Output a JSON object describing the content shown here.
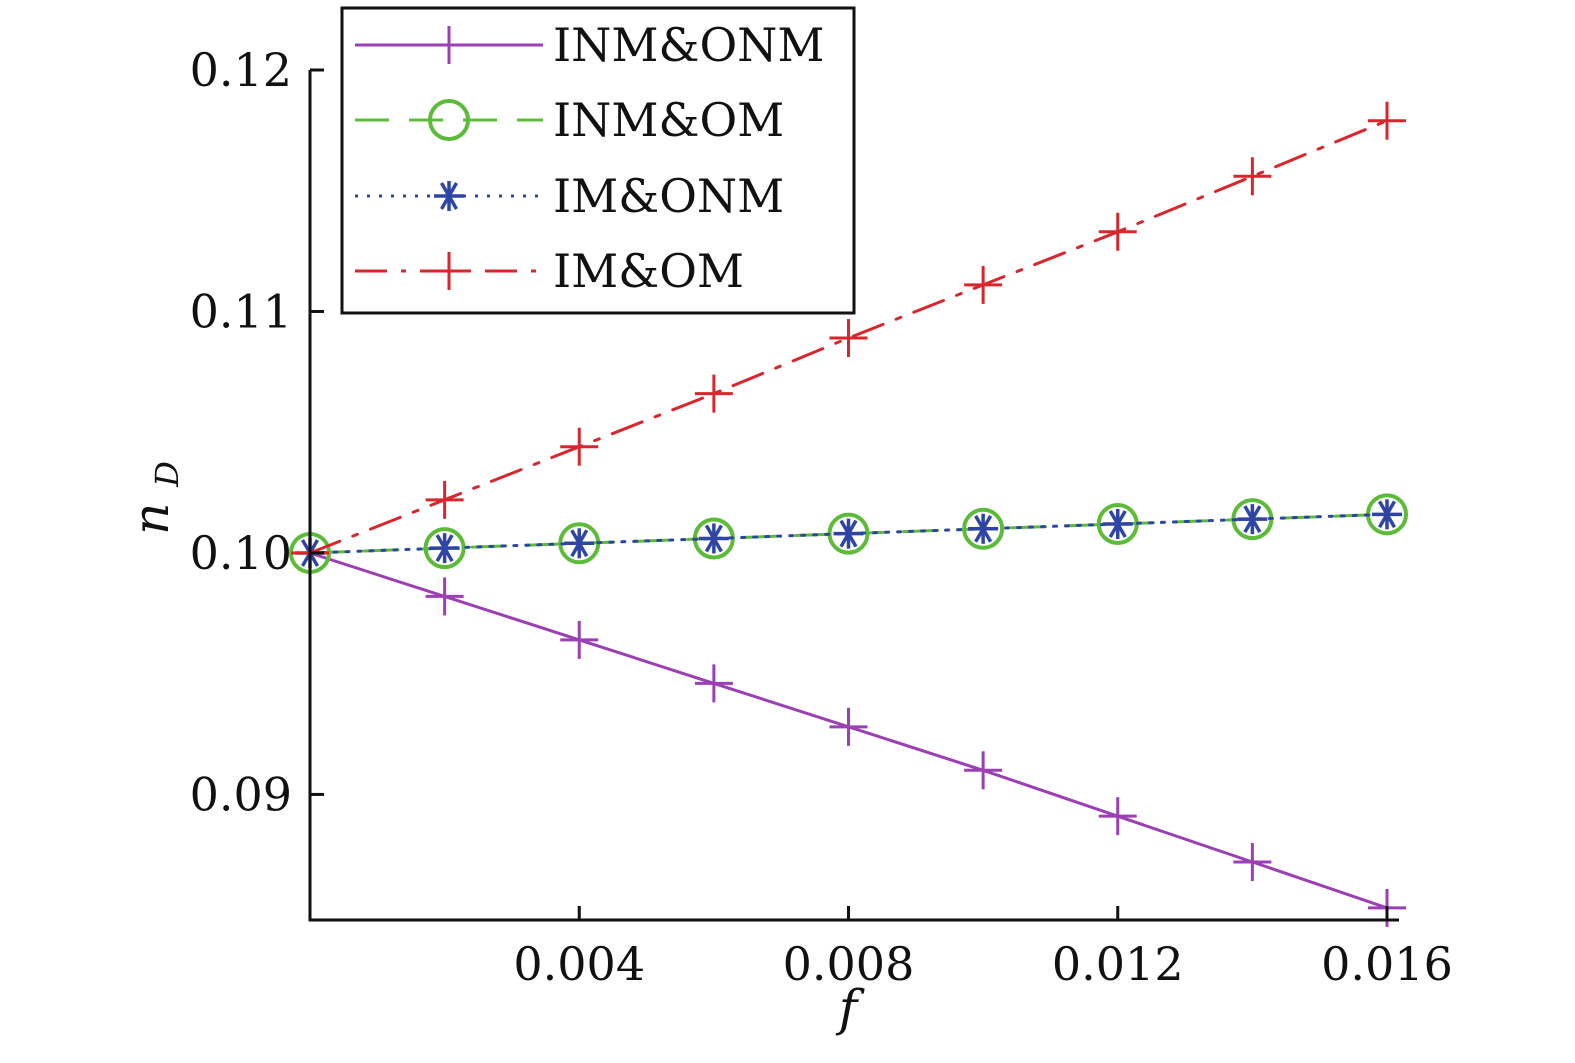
{
  "chart_data": {
    "type": "line",
    "xlabel": "f",
    "ylabel": {
      "main": "n",
      "sub": "D"
    },
    "xlim": [
      0,
      0.0165
    ],
    "ylim": [
      0.0848,
      0.1225
    ],
    "x_ticks": [
      "0.004",
      "0.008",
      "0.012",
      "0.016"
    ],
    "y_ticks": [
      "0.09",
      "0.10",
      "0.11",
      "0.12"
    ],
    "x_tick_values": [
      0.004,
      0.008,
      0.012,
      0.016
    ],
    "y_tick_values": [
      0.09,
      0.1,
      0.11,
      0.12
    ],
    "x": [
      0,
      0.002,
      0.004,
      0.006,
      0.008,
      0.01,
      0.012,
      0.014,
      0.016
    ],
    "legend_position": "top-left",
    "grid": false,
    "series": [
      {
        "name": "INM&ONM",
        "color": "#9B3FB5",
        "style": "solid",
        "marker": "plus",
        "values": [
          0.1,
          0.0982,
          0.0964,
          0.0946,
          0.0928,
          0.091,
          0.0891,
          0.0872,
          0.0853
        ]
      },
      {
        "name": "INM&OM",
        "color": "#5DBB3A",
        "style": "dashed",
        "marker": "circle",
        "values": [
          0.1,
          0.1002,
          0.1004,
          0.1006,
          0.1008,
          0.101,
          0.1012,
          0.1014,
          0.1016
        ]
      },
      {
        "name": "IM&ONM",
        "color": "#2E45A5",
        "style": "dotted",
        "marker": "asterisk",
        "values": [
          0.1,
          0.1002,
          0.1004,
          0.1006,
          0.1008,
          0.101,
          0.1012,
          0.1014,
          0.1016
        ]
      },
      {
        "name": "IM&OM",
        "color": "#D8262C",
        "style": "dashdot",
        "marker": "plus",
        "values": [
          0.1,
          0.1022,
          0.1044,
          0.1066,
          0.1089,
          0.1111,
          0.1133,
          0.1156,
          0.1179
        ]
      }
    ]
  }
}
